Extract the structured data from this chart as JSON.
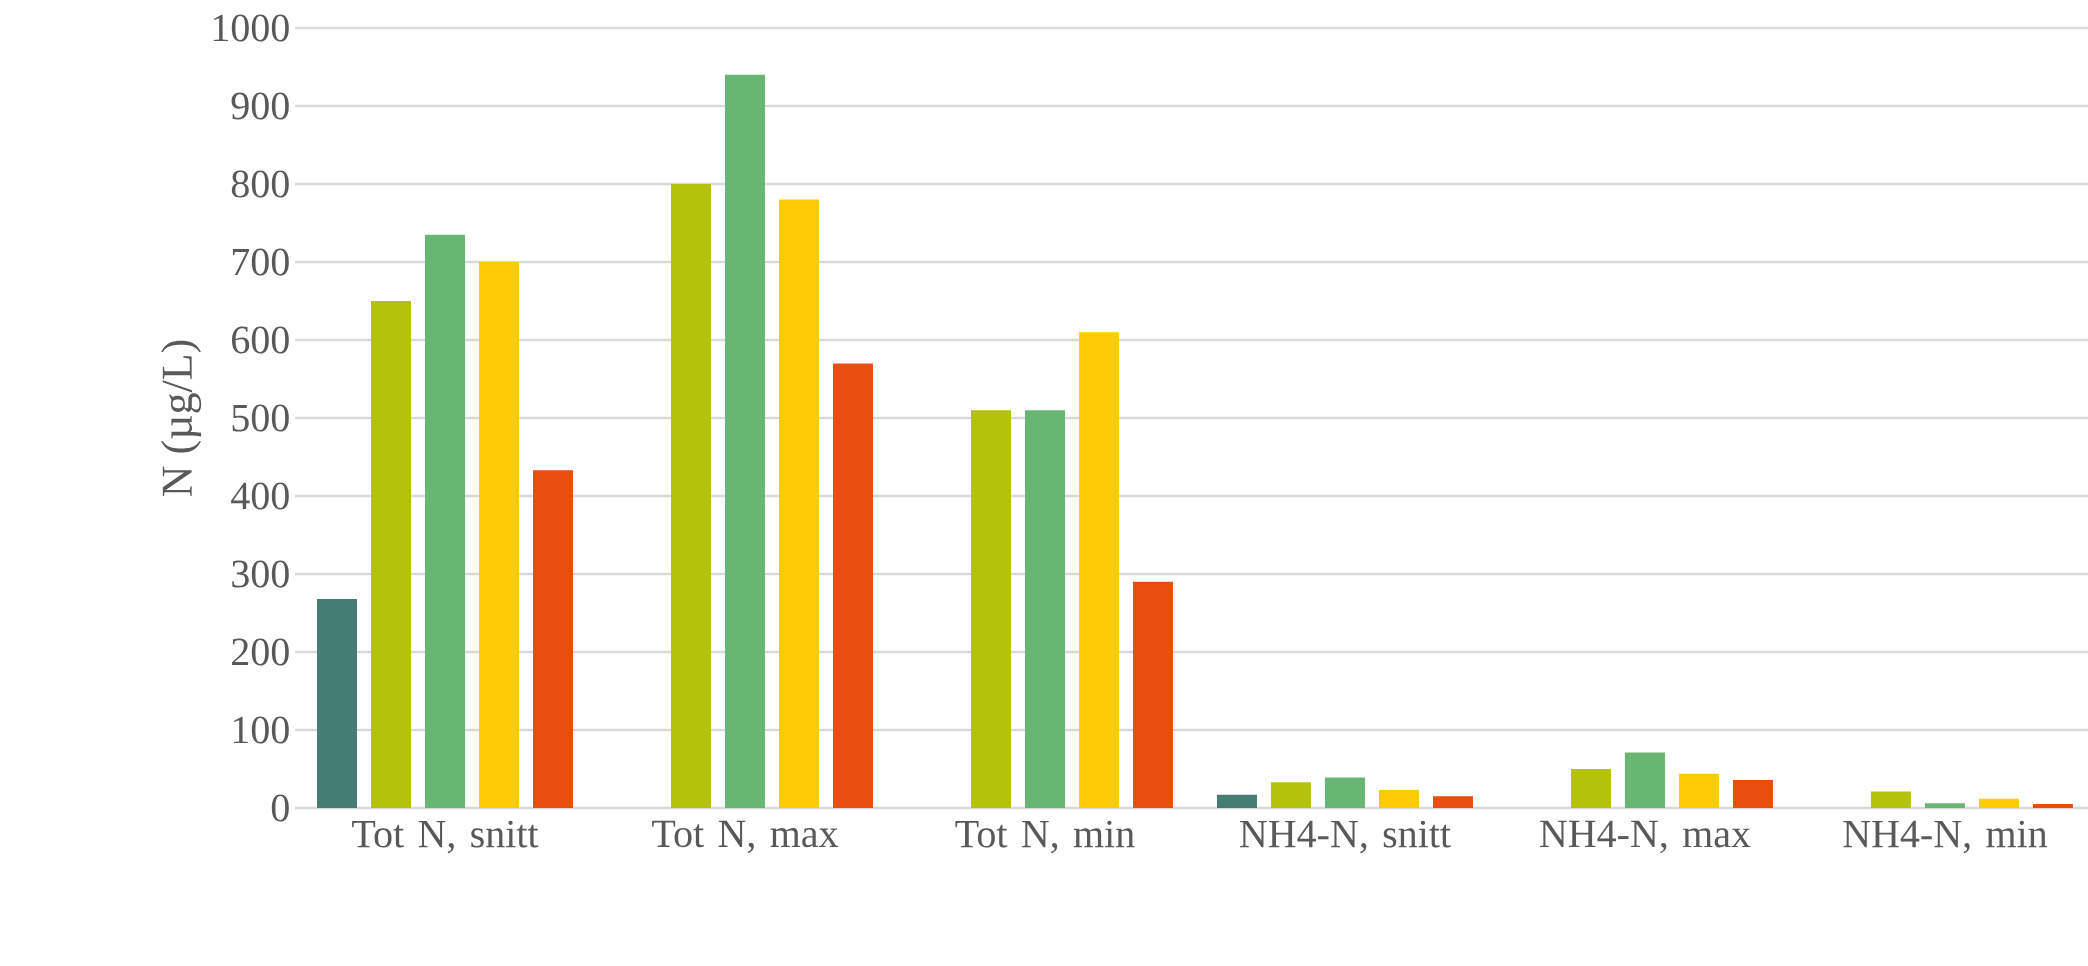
{
  "chart_data": {
    "type": "bar",
    "ylabel": "N (µg/L)",
    "categories": [
      "Tot N, snitt",
      "Tot N, max",
      "Tot N, min",
      "NH4-N, snitt",
      "NH4-N, max",
      "NH4-N, min"
    ],
    "series": [
      {
        "color": "#467d73",
        "values": [
          268,
          null,
          null,
          17,
          null,
          null
        ]
      },
      {
        "color": "#b5c20a",
        "values": [
          650,
          800,
          510,
          33,
          50,
          21
        ]
      },
      {
        "color": "#67b772",
        "values": [
          735,
          940,
          510,
          39,
          71,
          6
        ]
      },
      {
        "color": "#ffcb05",
        "values": [
          700,
          780,
          610,
          23,
          44,
          12
        ]
      },
      {
        "color": "#e84e0f",
        "values": [
          433,
          570,
          290,
          15,
          36,
          5
        ]
      }
    ],
    "ylim": [
      0,
      1000
    ],
    "yticks": [
      0,
      100,
      200,
      300,
      400,
      500,
      600,
      700,
      800,
      900,
      1000
    ],
    "grid": "y"
  }
}
